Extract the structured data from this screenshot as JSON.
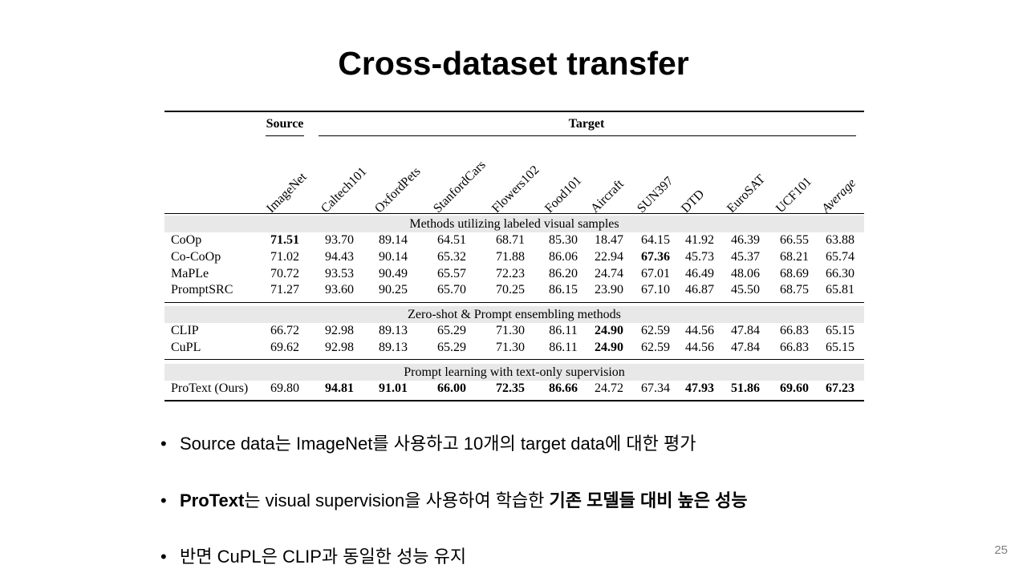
{
  "slide": {
    "title": "Cross-dataset transfer",
    "page_number": "25"
  },
  "table": {
    "source_header": "Source",
    "target_header": "Target",
    "columns": [
      "ImageNet",
      "Caltech101",
      "OxfordPets",
      "StanfordCars",
      "Flowers102",
      "Food101",
      "Aircraft",
      "SUN397",
      "DTD",
      "EuroSAT",
      "UCF101",
      "Average"
    ],
    "groups": [
      {
        "title": "Methods utilizing labeled visual samples",
        "rows": [
          {
            "method": "CoOp",
            "values": [
              "71.51",
              "93.70",
              "89.14",
              "64.51",
              "68.71",
              "85.30",
              "18.47",
              "64.15",
              "41.92",
              "46.39",
              "66.55",
              "63.88"
            ],
            "bold": [
              0
            ]
          },
          {
            "method": "Co-CoOp",
            "values": [
              "71.02",
              "94.43",
              "90.14",
              "65.32",
              "71.88",
              "86.06",
              "22.94",
              "67.36",
              "45.73",
              "45.37",
              "68.21",
              "65.74"
            ],
            "bold": [
              7
            ]
          },
          {
            "method": "MaPLe",
            "values": [
              "70.72",
              "93.53",
              "90.49",
              "65.57",
              "72.23",
              "86.20",
              "24.74",
              "67.01",
              "46.49",
              "48.06",
              "68.69",
              "66.30"
            ],
            "bold": []
          },
          {
            "method": "PromptSRC",
            "values": [
              "71.27",
              "93.60",
              "90.25",
              "65.70",
              "70.25",
              "86.15",
              "23.90",
              "67.10",
              "46.87",
              "45.50",
              "68.75",
              "65.81"
            ],
            "bold": []
          }
        ]
      },
      {
        "title": "Zero-shot & Prompt ensembling methods",
        "rows": [
          {
            "method": "CLIP",
            "values": [
              "66.72",
              "92.98",
              "89.13",
              "65.29",
              "71.30",
              "86.11",
              "24.90",
              "62.59",
              "44.56",
              "47.84",
              "66.83",
              "65.15"
            ],
            "bold": [
              6
            ]
          },
          {
            "method": "CuPL",
            "values": [
              "69.62",
              "92.98",
              "89.13",
              "65.29",
              "71.30",
              "86.11",
              "24.90",
              "62.59",
              "44.56",
              "47.84",
              "66.83",
              "65.15"
            ],
            "bold": [
              6
            ]
          }
        ]
      },
      {
        "title": "Prompt learning with text-only supervision",
        "rows": [
          {
            "method": "ProText (Ours)",
            "values": [
              "69.80",
              "94.81",
              "91.01",
              "66.00",
              "72.35",
              "86.66",
              "24.72",
              "67.34",
              "47.93",
              "51.86",
              "69.60",
              "67.23"
            ],
            "bold": [
              1,
              2,
              3,
              4,
              5,
              8,
              9,
              10,
              11
            ]
          }
        ]
      }
    ]
  },
  "bullets": [
    {
      "parts": [
        {
          "text": "Source data는 ImageNet를 사용하고 10개의 target data에 대한 평가",
          "bold": false
        }
      ]
    },
    {
      "parts": [
        {
          "text": "ProText",
          "bold": true
        },
        {
          "text": "는 visual supervision을 사용하여 학습한 ",
          "bold": false
        },
        {
          "text": "기존 모델들 대비 높은 성능",
          "bold": true
        }
      ]
    },
    {
      "parts": [
        {
          "text": "반면 CuPL은 CLIP과 동일한 성능 유지",
          "bold": false
        }
      ]
    }
  ]
}
